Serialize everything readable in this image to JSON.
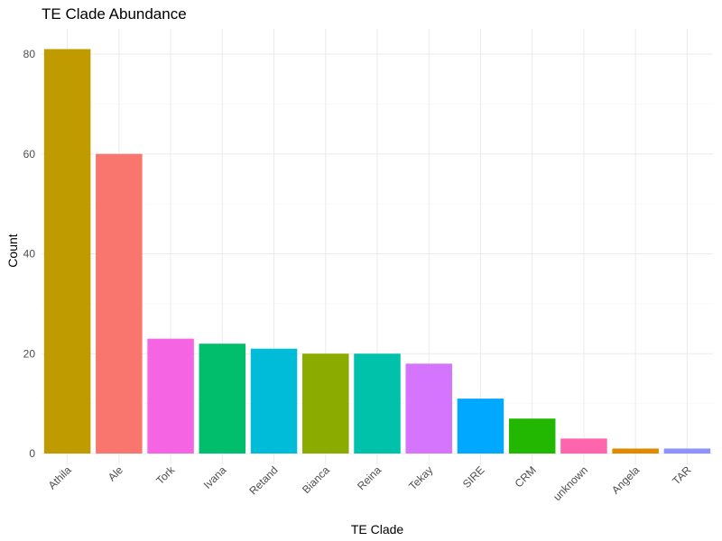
{
  "chart_data": {
    "type": "bar",
    "title": "TE Clade Abundance",
    "xlabel": "TE Clade",
    "ylabel": "Count",
    "categories": [
      "Athila",
      "Ale",
      "Tork",
      "Ivana",
      "Retand",
      "Bianca",
      "Reina",
      "Tekay",
      "SIRE",
      "CRM",
      "unknown",
      "Angela",
      "TAR"
    ],
    "values": [
      81,
      60,
      23,
      22,
      21,
      20,
      20,
      18,
      11,
      7,
      3,
      1,
      1
    ],
    "colors": [
      "#C09B00",
      "#F8766D",
      "#F564E3",
      "#00BE6C",
      "#00BCD8",
      "#8CAB00",
      "#00C1AA",
      "#D575FE",
      "#00A9FF",
      "#22B700",
      "#FF65AC",
      "#E18A00",
      "#8B93FF"
    ],
    "yticks": [
      0,
      20,
      40,
      60,
      80
    ],
    "ylim": [
      0,
      85
    ],
    "grid": true,
    "legend": "none"
  }
}
